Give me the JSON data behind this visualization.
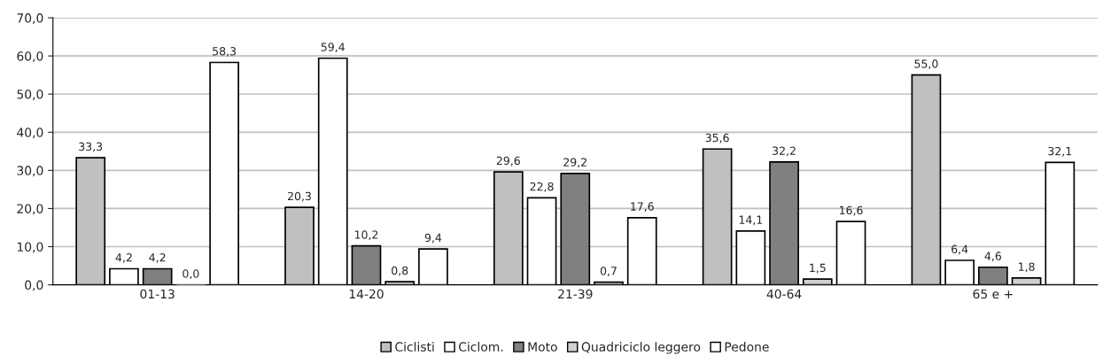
{
  "chart_data": {
    "type": "bar",
    "categories": [
      "01-13",
      "14-20",
      "21-39",
      "40-64",
      "65 e +"
    ],
    "series": [
      {
        "name": "Ciclisti",
        "color": "#c0c0c0",
        "values": [
          33.3,
          20.3,
          29.6,
          35.6,
          55.0
        ],
        "value_labels": [
          "33,3",
          "20,3",
          "29,6",
          "35,6",
          "55,0"
        ]
      },
      {
        "name": "Ciclom.",
        "color": "#ffffff",
        "values": [
          4.2,
          59.4,
          22.8,
          14.1,
          6.4
        ],
        "value_labels": [
          "4,2",
          "59,4",
          "22,8",
          "14,1",
          "6,4"
        ]
      },
      {
        "name": "Moto",
        "color": "#808080",
        "values": [
          4.2,
          10.2,
          29.2,
          32.2,
          4.6
        ],
        "value_labels": [
          "4,2",
          "10,2",
          "29,2",
          "32,2",
          "4,6"
        ]
      },
      {
        "name": "Quadriciclo leggero",
        "color": "#d0d0d0",
        "values": [
          0.0,
          0.8,
          0.7,
          1.5,
          1.8
        ],
        "value_labels": [
          "0,0",
          "0,8",
          "0,7",
          "1,5",
          "1,8"
        ]
      },
      {
        "name": "Pedone",
        "color": "#ffffff",
        "values": [
          58.3,
          9.4,
          17.6,
          16.6,
          32.1
        ],
        "value_labels": [
          "58,3",
          "9,4",
          "17,6",
          "16,6",
          "32,1"
        ]
      }
    ],
    "ylim": [
      0,
      70
    ],
    "yticks": [
      {
        "value": 0,
        "label": "0,0"
      },
      {
        "value": 10,
        "label": "10,0"
      },
      {
        "value": 20,
        "label": "20,0"
      },
      {
        "value": 30,
        "label": "30,0"
      },
      {
        "value": 40,
        "label": "40,0"
      },
      {
        "value": 50,
        "label": "50,0"
      },
      {
        "value": 60,
        "label": "60,0"
      },
      {
        "value": 70,
        "label": "70,0"
      }
    ],
    "grid": "y",
    "legend": "bottom"
  }
}
